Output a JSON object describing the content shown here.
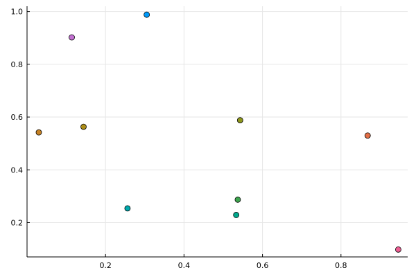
{
  "chart_data": {
    "type": "scatter",
    "title": "",
    "xlabel": "",
    "ylabel": "",
    "xlim": [
      0.0,
      0.97
    ],
    "ylim": [
      0.07,
      1.02
    ],
    "grid": true,
    "legend": "none",
    "x_ticks": [
      0.2,
      0.4,
      0.6,
      0.8
    ],
    "x_tick_labels": [
      "0.2",
      "0.4",
      "0.6",
      "0.8"
    ],
    "y_ticks": [
      0.2,
      0.4,
      0.6,
      0.8,
      1.0
    ],
    "y_tick_labels": [
      "0.2",
      "0.4",
      "0.6",
      "0.8",
      "1.0"
    ],
    "series": [
      {
        "x": [
          0.305
        ],
        "y": [
          0.988
        ],
        "color": "#009AFA"
      },
      {
        "x": [
          0.868
        ],
        "y": [
          0.53
        ],
        "color": "#E36F47"
      },
      {
        "x": [
          0.537
        ],
        "y": [
          0.287
        ],
        "color": "#3EA44E"
      },
      {
        "x": [
          0.114
        ],
        "y": [
          0.902
        ],
        "color": "#C371D2"
      },
      {
        "x": [
          0.144
        ],
        "y": [
          0.563
        ],
        "color": "#AC8D18"
      },
      {
        "x": [
          0.256
        ],
        "y": [
          0.254
        ],
        "color": "#00A9AD"
      },
      {
        "x": [
          0.946
        ],
        "y": [
          0.098
        ],
        "color": "#ED5E93"
      },
      {
        "x": [
          0.03
        ],
        "y": [
          0.542
        ],
        "color": "#C68225"
      },
      {
        "x": [
          0.533
        ],
        "y": [
          0.229
        ],
        "color": "#00A98D"
      },
      {
        "x": [
          0.543
        ],
        "y": [
          0.588
        ],
        "color": "#8E971D"
      }
    ]
  }
}
